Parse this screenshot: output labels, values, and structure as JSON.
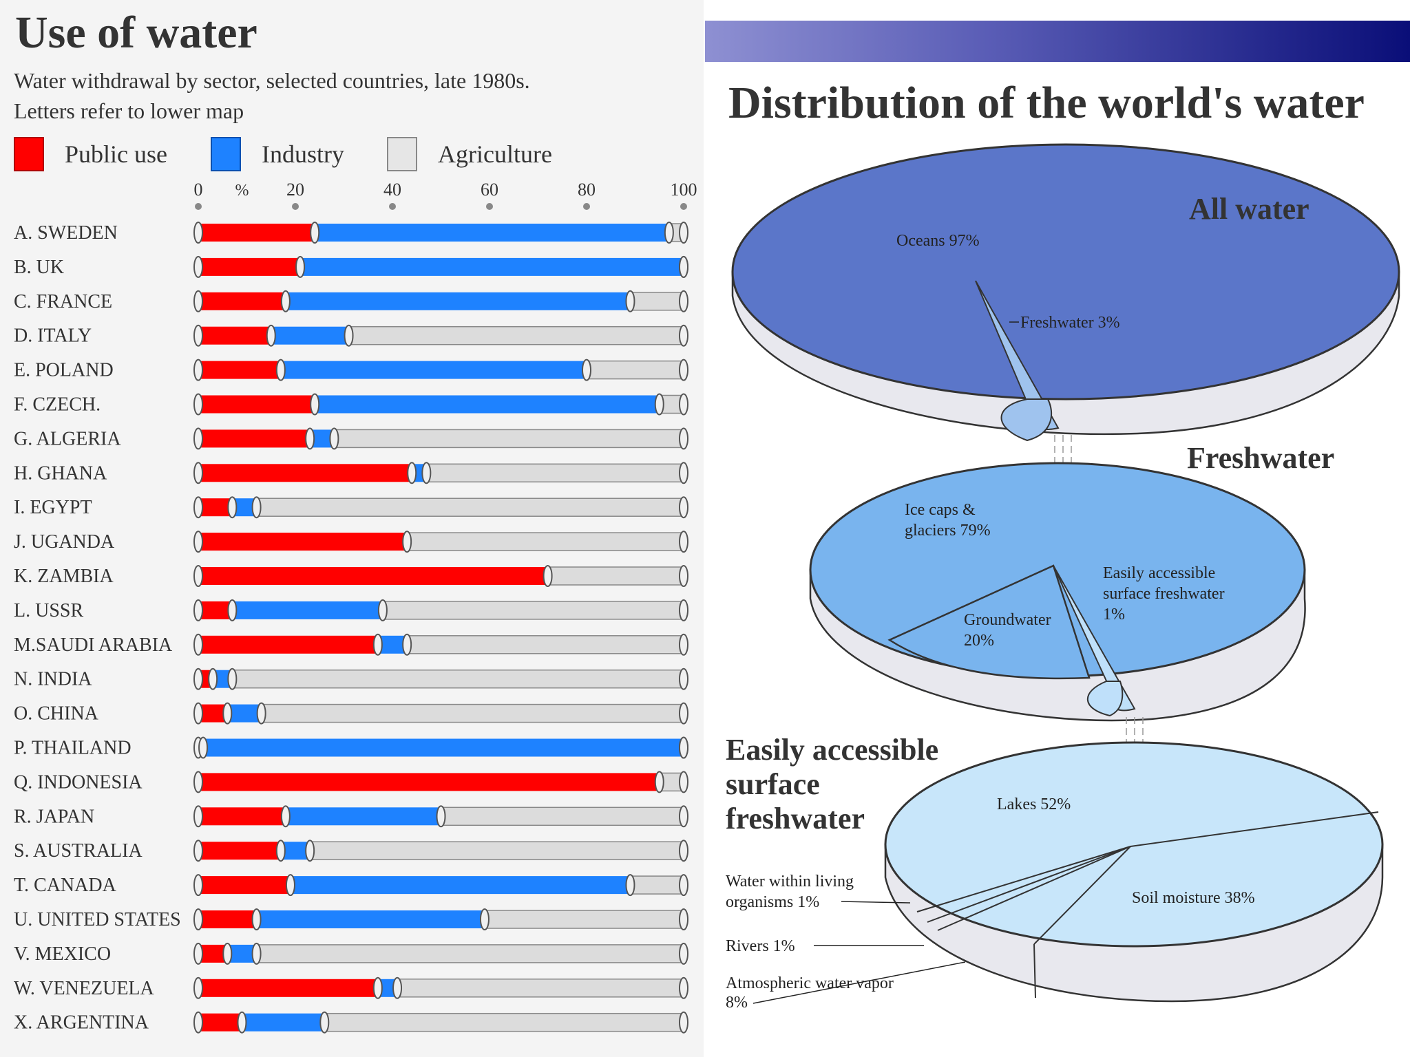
{
  "left": {
    "title": "Use of water",
    "subtitle_line1": "Water withdrawal by sector, selected countries, late 1980s.",
    "subtitle_line2": "Letters refer to lower map"
  },
  "colors": {
    "public": "#ff0000",
    "industry": "#1e82ff",
    "agriculture": "#dcdcdc"
  },
  "chart_data": [
    {
      "type": "bar",
      "stacked": true,
      "orientation": "horizontal",
      "title": "Use of water",
      "subtitle": "Water withdrawal by sector, selected countries, late 1980s. Letters refer to lower map",
      "xlabel": "%",
      "xlim": [
        0,
        100
      ],
      "x_ticks": [
        0,
        20,
        40,
        60,
        80,
        100
      ],
      "tick_labels": [
        "0",
        "20",
        "40",
        "60",
        "80",
        "100"
      ],
      "unit_label": "%",
      "legend": [
        "Public use",
        "Industry",
        "Agriculture"
      ],
      "legend_placement": "top",
      "categories": [
        "A. SWEDEN",
        "B. UK",
        "C. FRANCE",
        "D. ITALY",
        "E. POLAND",
        "F. CZECH.",
        "G. ALGERIA",
        "H. GHANA",
        "I. EGYPT",
        "J. UGANDA",
        "K. ZAMBIA",
        "L. USSR",
        "M.SAUDI ARABIA",
        "N. INDIA",
        "O. CHINA",
        "P. THAILAND",
        "Q. INDONESIA",
        "R. JAPAN",
        "S. AUSTRALIA",
        "T. CANADA",
        "U. UNITED STATES",
        "V. MEXICO",
        "W. VENEZUELA",
        "X. ARGENTINA"
      ],
      "series": [
        {
          "name": "Public use",
          "values": [
            24,
            21,
            18,
            15,
            17,
            24,
            23,
            44,
            7,
            43,
            72,
            7,
            37,
            3,
            6,
            1,
            95,
            18,
            17,
            19,
            12,
            6,
            37,
            9
          ]
        },
        {
          "name": "Industry",
          "values": [
            73,
            79,
            71,
            16,
            63,
            71,
            5,
            3,
            5,
            0,
            0,
            31,
            6,
            4,
            7,
            99,
            0,
            32,
            6,
            70,
            47,
            6,
            4,
            17
          ]
        },
        {
          "name": "Agriculture",
          "values": [
            3,
            0,
            11,
            69,
            20,
            5,
            72,
            53,
            88,
            57,
            28,
            62,
            57,
            93,
            87,
            0,
            5,
            50,
            77,
            11,
            41,
            88,
            59,
            74
          ]
        }
      ]
    },
    {
      "type": "pie",
      "title": "All water",
      "slices": [
        {
          "label": "Oceans 97%",
          "value": 97
        },
        {
          "label": "Freshwater 3%",
          "value": 3
        }
      ]
    },
    {
      "type": "pie",
      "title": "Freshwater",
      "slices": [
        {
          "label": "Ice caps & glaciers 79%",
          "value": 79
        },
        {
          "label": "Groundwater 20%",
          "value": 20
        },
        {
          "label": "Easily accessible surface freshwater 1%",
          "value": 1
        }
      ]
    },
    {
      "type": "pie",
      "title": "Easily accessible surface freshwater",
      "slices": [
        {
          "label": "Lakes 52%",
          "value": 52
        },
        {
          "label": "Soil moisture 38%",
          "value": 38
        },
        {
          "label": "Atmospheric water vapor 8%",
          "value": 8
        },
        {
          "label": "Rivers 1%",
          "value": 1
        },
        {
          "label": "Water within living organisms 1%",
          "value": 1
        }
      ]
    }
  ],
  "right": {
    "title": "Distribution of the world's water",
    "pie1": {
      "title": "All water",
      "oceans": "Oceans 97%",
      "freshwater": "Freshwater 3%"
    },
    "pie2": {
      "title": "Freshwater",
      "ice_1": "Ice caps &",
      "ice_2": "glaciers 79%",
      "ground_1": "Groundwater",
      "ground_2": "20%",
      "easy_1": "Easily accessible",
      "easy_2": "surface freshwater",
      "easy_3": "1%"
    },
    "pie3": {
      "title_1": "Easily accessible",
      "title_2": "surface",
      "title_3": "freshwater",
      "lakes": "Lakes 52%",
      "soil": "Soil moisture 38%",
      "organisms_1": "Water within living",
      "organisms_2": "organisms 1%",
      "rivers": "Rivers 1%",
      "vapor_1": "Atmospheric water vapor",
      "vapor_2": "8%"
    }
  }
}
